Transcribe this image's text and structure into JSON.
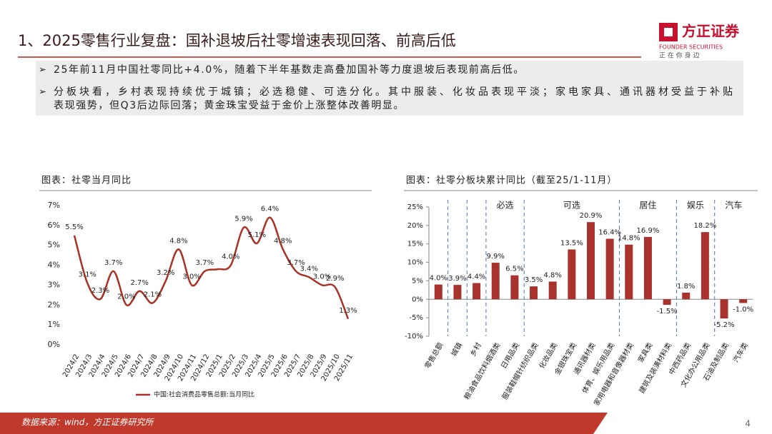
{
  "header": {
    "title": "1、2025零售行业复盘：国补退坡后社零增速表现回落、前高后低"
  },
  "logo": {
    "name": "方正证券",
    "english": "FOUNDER SECURITIES",
    "slogan": "正 在 你 身 边"
  },
  "bullets": [
    [
      "25年前11月中国社零同比+4.0%，随着下半年基数走高叠加国补等力度退坡后表现前高后低。"
    ],
    [
      "分板块看，乡村表现持续优于城镇；必选稳健、可选分化。其中服装、化妆品表现平淡；家电家具、通讯器材受益于补贴",
      "表现强势，但Q3后边际回落；黄金珠宝受益于金价上涨整体改善明显。"
    ]
  ],
  "footer": {
    "source": "数据来源：wind，方正证券研究所",
    "page": "4"
  },
  "chart_data": [
    {
      "type": "line",
      "title": "图表：社零当月同比",
      "categories": [
        "2024/2",
        "2024/3",
        "2024/4",
        "2024/5",
        "2024/6",
        "2024/7",
        "2024/8",
        "2024/9",
        "2024/10",
        "2024/11",
        "2024/12",
        "2025/1",
        "2025/2",
        "2025/3",
        "2025/4",
        "2025/5",
        "2025/6",
        "2025/7",
        "2025/8",
        "2025/9",
        "2025/10",
        "2025/11"
      ],
      "series": [
        {
          "name": "中国:社会消费品零售总额:当月同比",
          "color": "#a93226",
          "values": [
            5.5,
            3.1,
            2.3,
            3.7,
            2.0,
            2.7,
            2.1,
            3.2,
            4.8,
            3.0,
            3.7,
            3.8,
            4.0,
            5.9,
            5.1,
            6.4,
            4.8,
            3.7,
            3.4,
            3.0,
            2.9,
            1.3
          ],
          "value_labels": [
            "5.5%",
            "3.1%",
            "2.3%",
            "3.7%",
            "2.0%",
            "2.7%",
            "2.1%",
            "3.2%",
            "4.8%",
            "3.0%",
            "3.7%",
            null,
            "4.0%",
            "5.9%",
            "5.1%",
            "6.4%",
            "4.8%",
            "3.7%",
            "3.4%",
            "3.0%",
            "2.9%",
            "1.3%"
          ]
        }
      ],
      "ylim": [
        0,
        7
      ],
      "yticks": [
        {
          "value": 0,
          "label": "0%"
        },
        {
          "value": 1,
          "label": "1%"
        },
        {
          "value": 2,
          "label": "2%"
        },
        {
          "value": 3,
          "label": "3%"
        },
        {
          "value": 4,
          "label": "4%"
        },
        {
          "value": 5,
          "label": "5%"
        },
        {
          "value": 6,
          "label": "6%"
        },
        {
          "value": 7,
          "label": "7%"
        }
      ],
      "grid": false,
      "legend": "bottom"
    },
    {
      "type": "bar",
      "title": "图表：社零分板块累计同比（截至25/1-11月）",
      "categories": [
        "零售总额",
        "城镇",
        "乡村",
        "粮油食品饮料烟酒类",
        "日用品类",
        "服装鞋帽针纺织品类",
        "化妆品类",
        "金银珠宝类",
        "通讯器材类",
        "体育、娱乐用品类",
        "家用电器和音像器材类",
        "家具类",
        "建筑及装潢材料类",
        "中西药品类",
        "文化办公用品类",
        "石油及制品类",
        "汽车类"
      ],
      "values": [
        4.0,
        3.9,
        4.4,
        9.9,
        6.5,
        3.5,
        4.8,
        13.5,
        20.9,
        16.4,
        14.8,
        16.9,
        -1.5,
        1.8,
        18.2,
        -5.2,
        -1.0
      ],
      "value_labels": [
        "4.0%",
        "3.9%",
        "4.4%",
        "9.9%",
        "6.5%",
        "3.5%",
        "4.8%",
        "13.5%",
        "20.9%",
        "16.4%",
        "14.8%",
        "16.9%",
        "-1.5%",
        "1.8%",
        "18.2%",
        "-5.2%",
        "-1.0%"
      ],
      "color": "#a8322d",
      "groups": [
        {
          "name": "必选",
          "first": "粮油食品饮料烟酒类",
          "last": "日用品类"
        },
        {
          "name": "可选",
          "first": "服装鞋帽针纺织品类",
          "last": "体育、娱乐用品类"
        },
        {
          "name": "居住",
          "first": "家用电器和音像器材类",
          "last": "建筑及装潢材料类"
        },
        {
          "name": "娱乐",
          "first": "中西药品类",
          "last": "文化办公用品类"
        },
        {
          "name": "汽车",
          "first": "石油及制品类",
          "last": "汽车类"
        }
      ],
      "ylim": [
        -10,
        25
      ],
      "yticks": [
        {
          "value": -10,
          "label": "-10%"
        },
        {
          "value": -5,
          "label": "-5%"
        },
        {
          "value": 0,
          "label": "0%"
        },
        {
          "value": 5,
          "label": "5%"
        },
        {
          "value": 10,
          "label": "10%"
        },
        {
          "value": 15,
          "label": "15%"
        },
        {
          "value": 20,
          "label": "20%"
        },
        {
          "value": 25,
          "label": "25%"
        }
      ],
      "grid": false
    }
  ]
}
